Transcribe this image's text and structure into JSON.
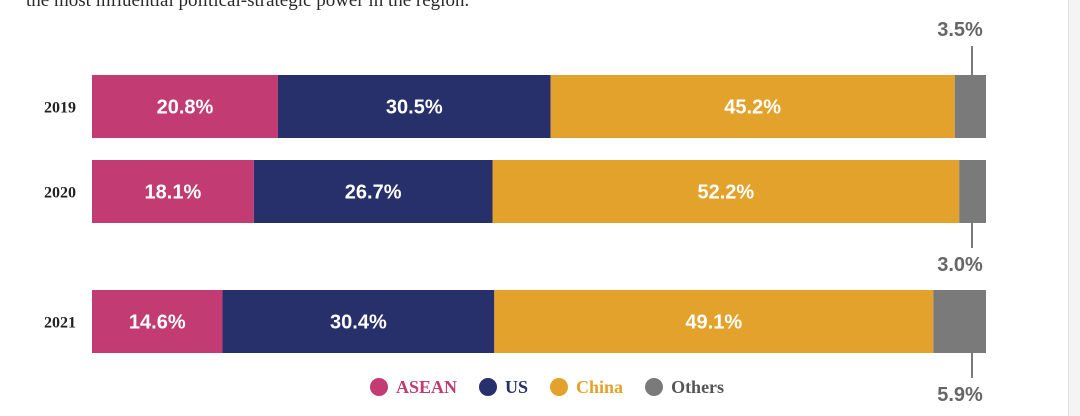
{
  "caption": "the most influential political-strategic power in the region.",
  "colors": {
    "ASEAN": "#c23b72",
    "US": "#27306b",
    "China": "#e2a22b",
    "Others": "#7a7a7a",
    "year_text": "#222222",
    "others_label": "#666666"
  },
  "legend": [
    {
      "name": "ASEAN",
      "color": "#c23b72"
    },
    {
      "name": "US",
      "color": "#27306b"
    },
    {
      "name": "China",
      "color": "#e2a22b"
    },
    {
      "name": "Others",
      "color": "#7a7a7a"
    }
  ],
  "chart_data": {
    "type": "bar",
    "orientation": "horizontal-stacked",
    "categories": [
      "2019",
      "2020",
      "2021"
    ],
    "series": [
      {
        "name": "ASEAN",
        "values": [
          20.8,
          18.1,
          14.6
        ],
        "labels": [
          "20.8%",
          "18.1%",
          "14.6%"
        ]
      },
      {
        "name": "US",
        "values": [
          30.5,
          26.7,
          30.4
        ],
        "labels": [
          "30.5%",
          "26.7%",
          "30.4%"
        ]
      },
      {
        "name": "China",
        "values": [
          45.2,
          52.2,
          49.1
        ],
        "labels": [
          "45.2%",
          "52.2%",
          "49.1%"
        ]
      },
      {
        "name": "Others",
        "values": [
          3.5,
          3.0,
          5.9
        ],
        "labels": [
          "3.5%",
          "3.0%",
          "5.9%"
        ]
      }
    ],
    "xlim": [
      0,
      100
    ],
    "legend_position": "bottom"
  }
}
